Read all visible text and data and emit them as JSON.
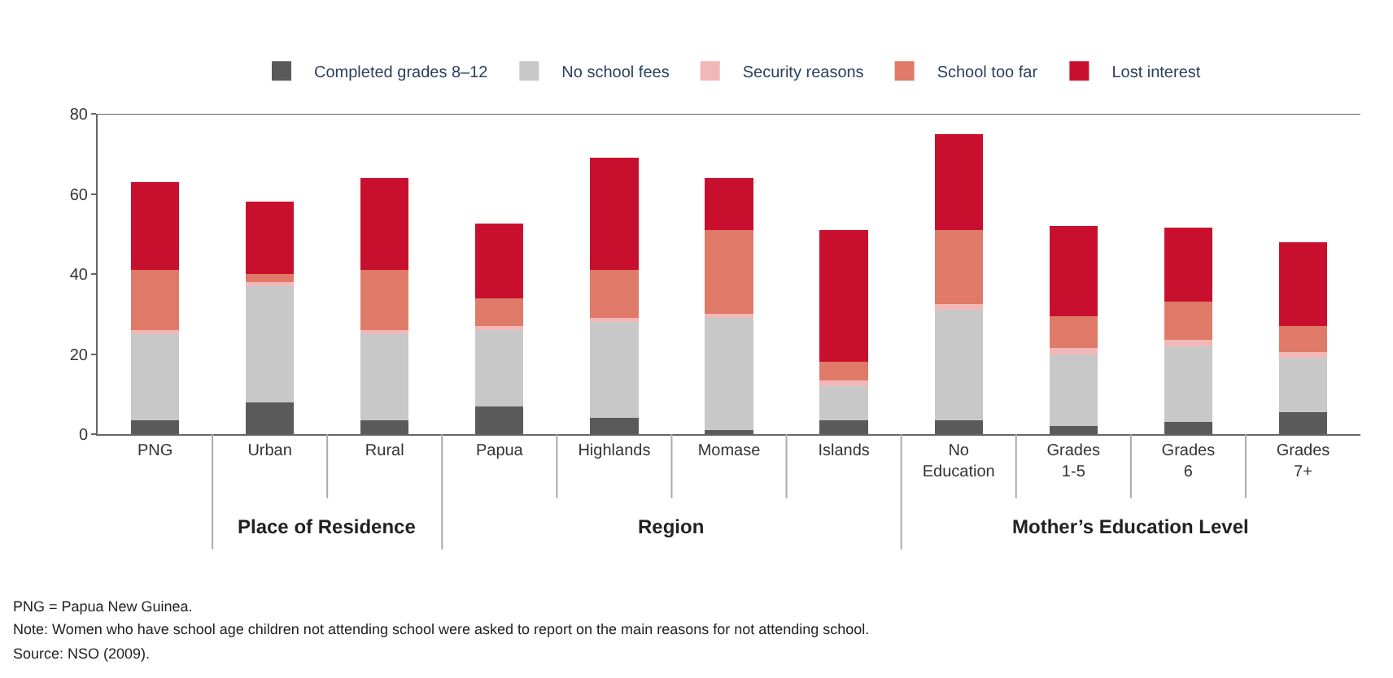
{
  "chart_data": {
    "type": "bar",
    "stacked": true,
    "categories": [
      "PNG",
      "Urban",
      "Rural",
      "Papua",
      "Highlands",
      "Momase",
      "Islands",
      "No\nEducation",
      "Grades\n1-5",
      "Grades\n6",
      "Grades\n7+"
    ],
    "series": [
      {
        "name": "Completed grades 8–12",
        "color": "#5a5a5a",
        "values": [
          3.5,
          8,
          3.5,
          7,
          4,
          1,
          3.5,
          3.5,
          2,
          3,
          5.5
        ]
      },
      {
        "name": "No school fees",
        "color": "#c8c8c8",
        "values": [
          21.5,
          29,
          21.5,
          19,
          24,
          28,
          8.5,
          27.5,
          18,
          19,
          13.5
        ]
      },
      {
        "name": "Security reasons",
        "color": "#f2b8b8",
        "values": [
          1,
          1,
          1,
          1,
          1,
          1,
          1.5,
          1.5,
          1.5,
          1.5,
          1.5
        ]
      },
      {
        "name": "School too far",
        "color": "#e07a68",
        "values": [
          15,
          2,
          15,
          7,
          12,
          21,
          4.5,
          18.5,
          8,
          9.5,
          6.5
        ]
      },
      {
        "name": "Lost interest",
        "color": "#c8102e",
        "values": [
          22,
          18,
          23,
          18.5,
          28,
          13,
          33,
          24,
          22.5,
          18.5,
          21
        ]
      }
    ],
    "ylim": [
      0,
      80
    ],
    "yticks": [
      0,
      20,
      40,
      60,
      80
    ],
    "legend": "top",
    "annotations": [
      "Place of Residence",
      "Region",
      "Mother’s Education Level",
      "PNG = Papua New Guinea.",
      "Note: Women who have school age children not attending school were asked to report on the main reasons for not attending school.",
      "Source: NSO (2009)."
    ]
  }
}
